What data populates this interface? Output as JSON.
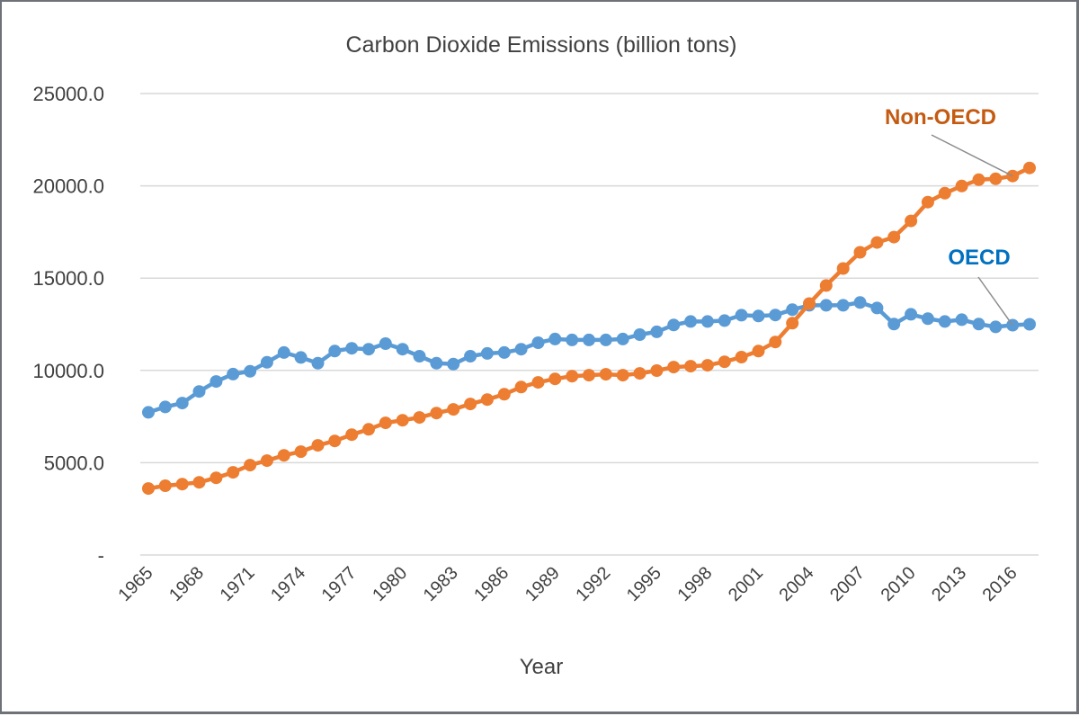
{
  "chart_data": {
    "type": "line",
    "title": "Carbon Dioxide Emissions (billion tons)",
    "xlabel": "Year",
    "ylabel": "",
    "ylim": [
      0,
      25000
    ],
    "yticks": [
      0,
      5000,
      10000,
      15000,
      20000,
      25000
    ],
    "ytick_labels": [
      "-",
      "5000.0",
      "10000.0",
      "15000.0",
      "20000.0",
      "25000.0"
    ],
    "grid": true,
    "legend": "none (direct labels near line ends, top-right)",
    "x": [
      1965,
      1966,
      1967,
      1968,
      1969,
      1970,
      1971,
      1972,
      1973,
      1974,
      1975,
      1976,
      1977,
      1978,
      1979,
      1980,
      1981,
      1982,
      1983,
      1984,
      1985,
      1986,
      1987,
      1988,
      1989,
      1990,
      1991,
      1992,
      1993,
      1994,
      1995,
      1996,
      1997,
      1998,
      1999,
      2000,
      2001,
      2002,
      2003,
      2004,
      2005,
      2006,
      2007,
      2008,
      2009,
      2010,
      2011,
      2012,
      2013,
      2014,
      2015,
      2016,
      2017
    ],
    "xtick_labels": [
      "1965",
      "1968",
      "1971",
      "1974",
      "1977",
      "1980",
      "1983",
      "1986",
      "1989",
      "1992",
      "1995",
      "1998",
      "2001",
      "2004",
      "2007",
      "2010",
      "2013",
      "2016"
    ],
    "series": [
      {
        "name": "OECD",
        "color": "#5B9BD5",
        "label_color": "#0070C0",
        "values": [
          7730,
          8020,
          8230,
          8860,
          9400,
          9800,
          9950,
          10440,
          10970,
          10700,
          10390,
          11050,
          11200,
          11150,
          11450,
          11150,
          10770,
          10390,
          10340,
          10770,
          10920,
          10970,
          11150,
          11500,
          11700,
          11650,
          11650,
          11650,
          11700,
          11940,
          12090,
          12460,
          12650,
          12650,
          12700,
          12990,
          12950,
          13000,
          13290,
          13530,
          13530,
          13530,
          13680,
          13380,
          12510,
          13040,
          12800,
          12650,
          12750,
          12510,
          12360,
          12450,
          12500
        ]
      },
      {
        "name": "Non-OECD",
        "color": "#ED7D31",
        "label_color": "#C55A11",
        "values": [
          3600,
          3750,
          3840,
          3940,
          4180,
          4480,
          4870,
          5110,
          5400,
          5600,
          5940,
          6180,
          6520,
          6810,
          7160,
          7300,
          7450,
          7690,
          7890,
          8180,
          8420,
          8710,
          9100,
          9350,
          9540,
          9690,
          9740,
          9790,
          9740,
          9840,
          9990,
          10180,
          10230,
          10280,
          10470,
          10720,
          11050,
          11540,
          12560,
          13620,
          14600,
          15520,
          16400,
          16930,
          17220,
          18100,
          19120,
          19600,
          19990,
          20330,
          20380,
          20530,
          20970
        ]
      }
    ],
    "annotations": [
      {
        "text": "Non-OECD",
        "series": "Non-OECD",
        "points_to_year": 2016
      },
      {
        "text": "OECD",
        "series": "OECD",
        "points_to_year": 2016
      }
    ]
  }
}
